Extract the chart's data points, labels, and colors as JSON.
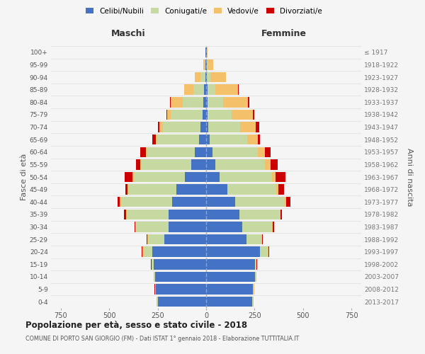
{
  "age_groups": [
    "0-4",
    "5-9",
    "10-14",
    "15-19",
    "20-24",
    "25-29",
    "30-34",
    "35-39",
    "40-44",
    "45-49",
    "50-54",
    "55-59",
    "60-64",
    "65-69",
    "70-74",
    "75-79",
    "80-84",
    "85-89",
    "90-94",
    "95-99",
    "100+"
  ],
  "birth_years": [
    "2013-2017",
    "2008-2012",
    "2003-2007",
    "1998-2002",
    "1993-1997",
    "1988-1992",
    "1983-1987",
    "1978-1982",
    "1973-1977",
    "1968-1972",
    "1963-1967",
    "1958-1962",
    "1953-1957",
    "1948-1952",
    "1943-1947",
    "1938-1942",
    "1933-1937",
    "1928-1932",
    "1923-1927",
    "1918-1922",
    "≤ 1917"
  ],
  "colors": {
    "single": "#4472C4",
    "married": "#C5D9A0",
    "widowed": "#F4C069",
    "divorced": "#CC0000"
  },
  "male_single": [
    248,
    258,
    262,
    272,
    278,
    215,
    195,
    195,
    175,
    155,
    108,
    78,
    58,
    38,
    28,
    18,
    14,
    10,
    5,
    4,
    2
  ],
  "male_married": [
    4,
    4,
    5,
    8,
    45,
    85,
    165,
    215,
    265,
    245,
    265,
    255,
    245,
    215,
    195,
    165,
    105,
    55,
    25,
    4,
    0
  ],
  "male_widowed": [
    2,
    2,
    2,
    2,
    4,
    4,
    4,
    4,
    4,
    4,
    8,
    8,
    8,
    8,
    18,
    18,
    65,
    48,
    28,
    8,
    2
  ],
  "male_divorced": [
    2,
    2,
    2,
    2,
    4,
    4,
    4,
    8,
    12,
    12,
    38,
    22,
    28,
    18,
    8,
    4,
    4,
    0,
    0,
    0,
    0
  ],
  "female_single": [
    238,
    242,
    252,
    252,
    278,
    208,
    188,
    172,
    148,
    108,
    68,
    48,
    32,
    18,
    12,
    8,
    8,
    8,
    5,
    4,
    2
  ],
  "female_married": [
    4,
    4,
    4,
    6,
    38,
    78,
    152,
    208,
    258,
    252,
    272,
    255,
    235,
    195,
    165,
    125,
    78,
    38,
    18,
    4,
    0
  ],
  "female_widowed": [
    2,
    2,
    2,
    2,
    4,
    4,
    4,
    4,
    8,
    12,
    18,
    28,
    38,
    52,
    78,
    108,
    128,
    118,
    78,
    28,
    4
  ],
  "female_divorced": [
    2,
    2,
    2,
    2,
    4,
    4,
    8,
    8,
    22,
    28,
    52,
    38,
    28,
    12,
    18,
    8,
    8,
    4,
    0,
    0,
    0
  ],
  "xlim": 800,
  "title": "Popolazione per età, sesso e stato civile - 2018",
  "subtitle": "COMUNE DI PORTO SAN GIORGIO (FM) - Dati ISTAT 1° gennaio 2018 - Elaborazione TUTTITALIA.IT",
  "legend_labels": [
    "Celibi/Nubili",
    "Coniugati/e",
    "Vedovi/e",
    "Divorziati/e"
  ],
  "label_maschi": "Maschi",
  "label_femmine": "Femmine",
  "ylabel_left": "Fasce di età",
  "ylabel_right": "Anni di nascita",
  "bg_color": "#f5f5f5",
  "grid_color": "#dddddd"
}
